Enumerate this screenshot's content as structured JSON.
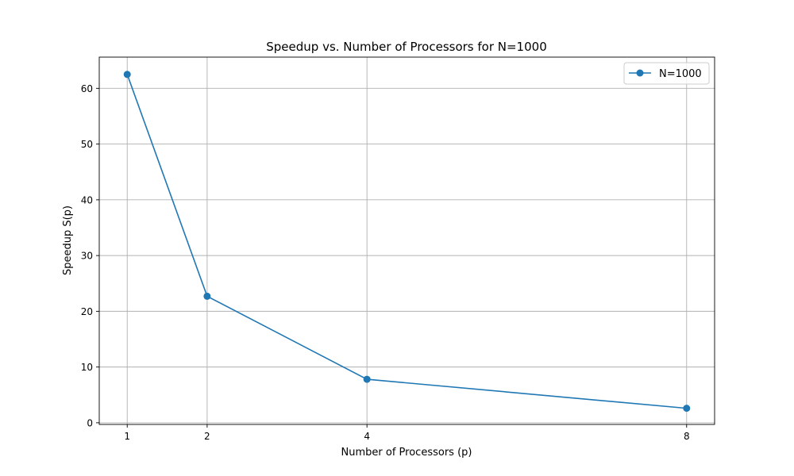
{
  "chart_data": {
    "type": "line",
    "title": "Speedup vs. Number of Processors for N=1000",
    "xlabel": "Number of Processors (p)",
    "ylabel": "Speedup S(p)",
    "x": [
      1,
      2,
      4,
      8
    ],
    "x_ticks": [
      1,
      2,
      4,
      8
    ],
    "y_ticks": [
      0,
      10,
      20,
      30,
      40,
      50,
      60
    ],
    "xlim": [
      0.65,
      8.35
    ],
    "ylim": [
      -0.3,
      65.6
    ],
    "grid": true,
    "legend_placement": "top-right",
    "series": [
      {
        "name": "N=1000",
        "values": [
          62.5,
          22.7,
          7.8,
          2.6
        ],
        "color": "#1f77b4",
        "marker": "circle"
      }
    ]
  }
}
